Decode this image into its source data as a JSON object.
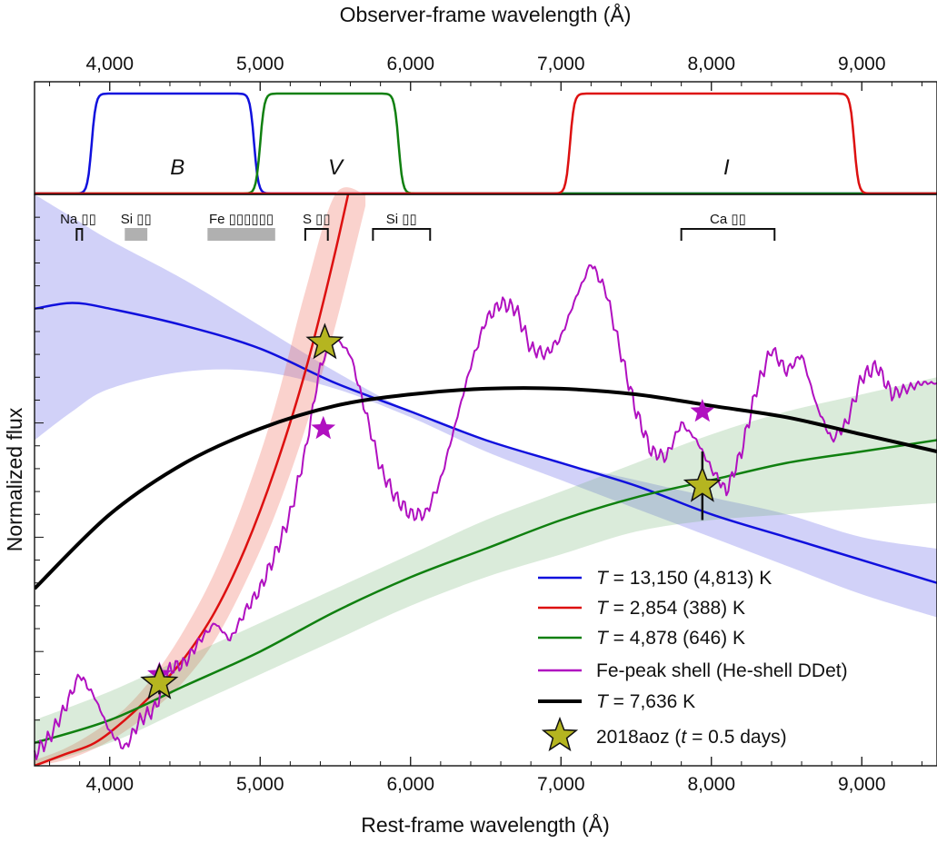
{
  "chart_data": {
    "type": "line",
    "top_axis_title": "Observer-frame wavelength (Å)",
    "top_ticks": [
      "4,000",
      "5,000",
      "6,000",
      "7,000",
      "8,000",
      "9,000"
    ],
    "top_tick_values": [
      4000,
      5000,
      6000,
      7000,
      8000,
      9000
    ],
    "top_xlim": [
      3500,
      9500
    ],
    "xlabel": "Rest-frame wavelength (Å)",
    "ylabel": "Normalized flux",
    "xlim": [
      3500,
      9500
    ],
    "ylim": [
      0,
      1
    ],
    "bottom_ticks": [
      "4,000",
      "5,000",
      "6,000",
      "7,000",
      "8,000",
      "9,000"
    ],
    "bottom_tick_values": [
      4000,
      5000,
      6000,
      7000,
      8000,
      9000
    ],
    "filters": [
      {
        "name": "B",
        "color": "#1010dd",
        "range": [
          3880,
          4960
        ],
        "label_x": 4450
      },
      {
        "name": "V",
        "color": "#108010",
        "range": [
          5000,
          5920
        ],
        "label_x": 5500
      },
      {
        "name": "I",
        "color": "#dd1010",
        "range": [
          7060,
          8950
        ],
        "label_x": 8100
      }
    ],
    "line_ids": [
      {
        "text": "Na ▯▯",
        "range": [
          3780,
          3800
        ],
        "style": "bracket"
      },
      {
        "text": "Si ▯▯",
        "range": [
          4100,
          4250
        ],
        "style": "shaded"
      },
      {
        "text": "Fe ▯▯▯▯▯▯",
        "range": [
          4650,
          5100
        ],
        "style": "shaded"
      },
      {
        "text": "S ▯▯",
        "range": [
          5300,
          5450
        ],
        "style": "bracket"
      },
      {
        "text": "Si ▯▯",
        "range": [
          5750,
          6130
        ],
        "style": "bracket"
      },
      {
        "text": "Ca ▯▯",
        "range": [
          7800,
          8420
        ],
        "style": "bracket"
      }
    ],
    "series": [
      {
        "name": "T = 13,150 (4,813) K",
        "T_label": "T",
        "rest": " = 13,150 (4,813) K",
        "color": "#1010dd",
        "x": [
          3500,
          3750,
          4000,
          4500,
          5000,
          5500,
          6000,
          6500,
          7000,
          7500,
          8000,
          8500,
          9000,
          9500
        ],
        "y": [
          0.8,
          0.81,
          0.8,
          0.77,
          0.73,
          0.67,
          0.62,
          0.57,
          0.53,
          0.49,
          0.44,
          0.4,
          0.36,
          0.32
        ],
        "band_upper": [
          1.0,
          0.96,
          0.92,
          0.85,
          0.77,
          0.69,
          0.62,
          0.57,
          0.53,
          0.5,
          0.47,
          0.44,
          0.4,
          0.38
        ],
        "band_lower": [
          0.57,
          0.62,
          0.66,
          0.69,
          0.69,
          0.66,
          0.61,
          0.55,
          0.5,
          0.45,
          0.4,
          0.35,
          0.3,
          0.26
        ]
      },
      {
        "name": "T = 2,854 (388) K",
        "T_label": "T",
        "rest": " = 2,854 (388) K",
        "color": "#dd1010",
        "x": [
          3500,
          3700,
          3900,
          4100,
          4300,
          4500,
          4700,
          4900,
          5100,
          5300,
          5500,
          5700
        ],
        "y": [
          0.0,
          0.02,
          0.04,
          0.08,
          0.13,
          0.19,
          0.27,
          0.38,
          0.52,
          0.69,
          0.9,
          1.14
        ],
        "band_upper": [
          0.01,
          0.03,
          0.06,
          0.1,
          0.16,
          0.24,
          0.34,
          0.47,
          0.63,
          0.83,
          1.07,
          1.3
        ],
        "band_lower": [
          0.0,
          0.01,
          0.03,
          0.06,
          0.1,
          0.15,
          0.22,
          0.32,
          0.44,
          0.59,
          0.77,
          0.98
        ]
      },
      {
        "name": "T = 4,878 (646) K",
        "T_label": "T",
        "rest": " = 4,878 (646) K",
        "color": "#108010",
        "x": [
          3500,
          4000,
          4500,
          5000,
          5500,
          6000,
          6500,
          7000,
          7500,
          8000,
          8500,
          9000,
          9500
        ],
        "y": [
          0.04,
          0.08,
          0.14,
          0.2,
          0.27,
          0.33,
          0.38,
          0.43,
          0.47,
          0.5,
          0.53,
          0.55,
          0.57
        ],
        "band_upper": [
          0.08,
          0.13,
          0.19,
          0.25,
          0.31,
          0.37,
          0.43,
          0.48,
          0.53,
          0.58,
          0.62,
          0.65,
          0.68
        ],
        "band_lower": [
          0.0,
          0.04,
          0.1,
          0.16,
          0.22,
          0.28,
          0.33,
          0.37,
          0.41,
          0.43,
          0.44,
          0.45,
          0.46
        ]
      },
      {
        "name": "Fe-peak shell (He-shell DDet)",
        "color": "#b010c0",
        "x": [
          3500,
          3600,
          3700,
          3800,
          3900,
          4000,
          4100,
          4200,
          4300,
          4400,
          4500,
          4600,
          4700,
          4800,
          4900,
          5000,
          5100,
          5200,
          5300,
          5400,
          5500,
          5600,
          5700,
          5800,
          5900,
          6000,
          6100,
          6200,
          6300,
          6400,
          6500,
          6600,
          6700,
          6800,
          6900,
          7000,
          7100,
          7200,
          7300,
          7400,
          7500,
          7600,
          7700,
          7800,
          7900,
          8000,
          8100,
          8200,
          8300,
          8400,
          8500,
          8600,
          8700,
          8800,
          8900,
          9000,
          9100,
          9200,
          9300,
          9400,
          9500
        ],
        "y": [
          0.02,
          0.05,
          0.1,
          0.16,
          0.12,
          0.06,
          0.03,
          0.08,
          0.1,
          0.17,
          0.18,
          0.22,
          0.25,
          0.22,
          0.27,
          0.31,
          0.37,
          0.44,
          0.55,
          0.7,
          0.75,
          0.72,
          0.62,
          0.52,
          0.47,
          0.44,
          0.44,
          0.5,
          0.6,
          0.7,
          0.78,
          0.81,
          0.8,
          0.73,
          0.72,
          0.75,
          0.82,
          0.88,
          0.83,
          0.72,
          0.62,
          0.55,
          0.54,
          0.6,
          0.57,
          0.52,
          0.48,
          0.55,
          0.66,
          0.73,
          0.69,
          0.72,
          0.63,
          0.57,
          0.6,
          0.68,
          0.7,
          0.65,
          0.66,
          0.67,
          0.67
        ]
      },
      {
        "name": "T = 7,636 K",
        "T_label": "T",
        "rest": " = 7,636 K",
        "color": "#000000",
        "x": [
          3500,
          4000,
          4500,
          5000,
          5500,
          6000,
          6500,
          7000,
          7500,
          8000,
          8500,
          9000,
          9500
        ],
        "y": [
          0.31,
          0.44,
          0.53,
          0.59,
          0.63,
          0.65,
          0.66,
          0.66,
          0.65,
          0.63,
          0.61,
          0.58,
          0.55
        ]
      }
    ],
    "observations": {
      "name": "2018aoz (t = 0.5 days)",
      "legend_pre": "2018aoz (",
      "legend_t": "t",
      "legend_post": " = 0.5 days)",
      "color": "#b5b520",
      "points": [
        {
          "x": 4330,
          "y": 0.145,
          "yerr": 0.02
        },
        {
          "x": 5430,
          "y": 0.74,
          "yerr": 0.01
        },
        {
          "x": 7940,
          "y": 0.49,
          "yerr": 0.06
        }
      ]
    },
    "model_points": [
      {
        "x": 4330,
        "y": 0.16
      },
      {
        "x": 5420,
        "y": 0.59
      },
      {
        "x": 7940,
        "y": 0.62
      }
    ]
  }
}
